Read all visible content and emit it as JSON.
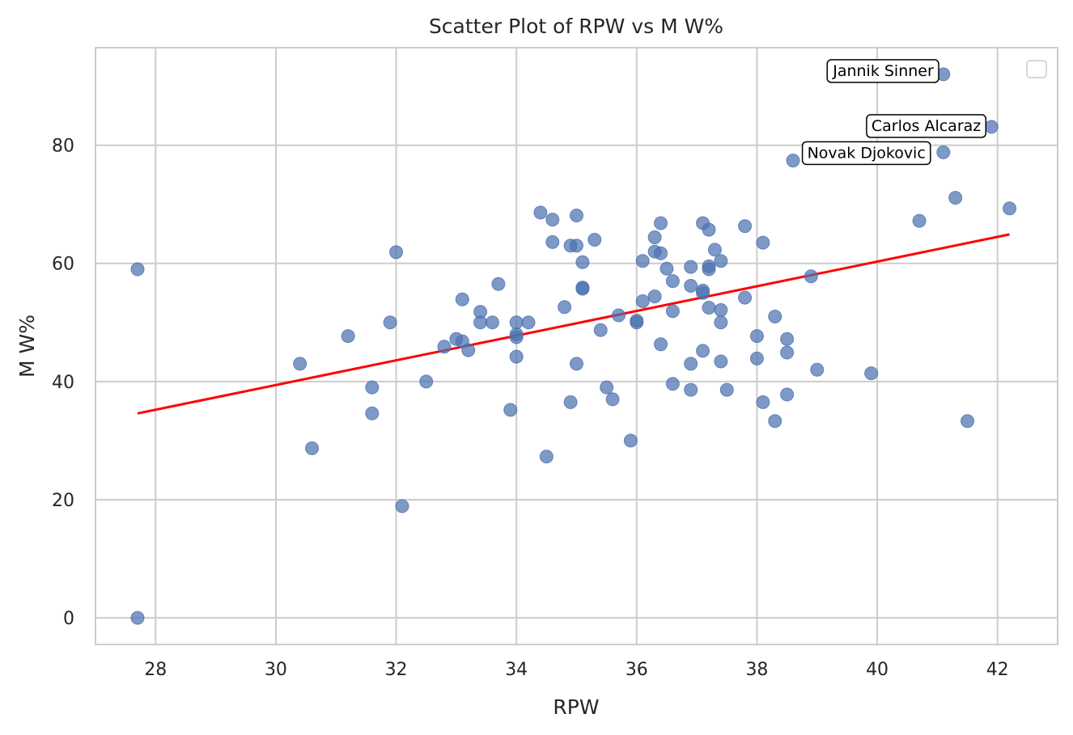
{
  "chart_data": {
    "type": "scatter",
    "title": "Scatter Plot of RPW vs M W%",
    "xlabel": "RPW",
    "ylabel": "M W%",
    "xlim": [
      27,
      43
    ],
    "ylim": [
      -4.5,
      96.5
    ],
    "xticks": [
      28,
      30,
      32,
      34,
      36,
      38,
      40,
      42
    ],
    "yticks": [
      0,
      20,
      40,
      60,
      80
    ],
    "grid": true,
    "legend": "top-right, empty",
    "colors": {
      "points": "#4c72b0",
      "trend": "#ff0000",
      "grid": "#cccccc",
      "frame": "#cccccc"
    },
    "points": [
      {
        "x": 27.7,
        "y": 59.0
      },
      {
        "x": 27.7,
        "y": 0.0
      },
      {
        "x": 30.4,
        "y": 43.0
      },
      {
        "x": 30.6,
        "y": 28.7
      },
      {
        "x": 31.2,
        "y": 47.7
      },
      {
        "x": 31.6,
        "y": 39.0
      },
      {
        "x": 31.6,
        "y": 34.6
      },
      {
        "x": 31.9,
        "y": 50.0
      },
      {
        "x": 32.0,
        "y": 61.9
      },
      {
        "x": 32.1,
        "y": 18.9
      },
      {
        "x": 32.5,
        "y": 40.0
      },
      {
        "x": 32.8,
        "y": 45.9
      },
      {
        "x": 33.0,
        "y": 47.2
      },
      {
        "x": 33.1,
        "y": 46.8
      },
      {
        "x": 33.1,
        "y": 53.9
      },
      {
        "x": 33.2,
        "y": 45.3
      },
      {
        "x": 33.4,
        "y": 51.8
      },
      {
        "x": 33.4,
        "y": 50.0
      },
      {
        "x": 33.6,
        "y": 50.0
      },
      {
        "x": 33.7,
        "y": 56.5
      },
      {
        "x": 33.9,
        "y": 35.2
      },
      {
        "x": 34.0,
        "y": 50.0
      },
      {
        "x": 34.0,
        "y": 48.0
      },
      {
        "x": 34.0,
        "y": 47.5
      },
      {
        "x": 34.0,
        "y": 44.2
      },
      {
        "x": 34.2,
        "y": 50.0
      },
      {
        "x": 34.4,
        "y": 68.6
      },
      {
        "x": 34.5,
        "y": 27.3
      },
      {
        "x": 34.6,
        "y": 67.4
      },
      {
        "x": 34.6,
        "y": 63.6
      },
      {
        "x": 34.8,
        "y": 52.6
      },
      {
        "x": 34.9,
        "y": 63.0
      },
      {
        "x": 34.9,
        "y": 36.5
      },
      {
        "x": 35.0,
        "y": 68.1
      },
      {
        "x": 35.0,
        "y": 63.0
      },
      {
        "x": 35.0,
        "y": 43.0
      },
      {
        "x": 35.1,
        "y": 60.2
      },
      {
        "x": 35.1,
        "y": 55.9
      },
      {
        "x": 35.1,
        "y": 55.7
      },
      {
        "x": 35.3,
        "y": 64.0
      },
      {
        "x": 35.4,
        "y": 48.7
      },
      {
        "x": 35.5,
        "y": 39.0
      },
      {
        "x": 35.6,
        "y": 37.0
      },
      {
        "x": 35.7,
        "y": 51.2
      },
      {
        "x": 35.9,
        "y": 30.0
      },
      {
        "x": 36.0,
        "y": 50.0
      },
      {
        "x": 36.0,
        "y": 50.3
      },
      {
        "x": 36.1,
        "y": 60.4
      },
      {
        "x": 36.1,
        "y": 53.6
      },
      {
        "x": 36.3,
        "y": 64.4
      },
      {
        "x": 36.3,
        "y": 62.0
      },
      {
        "x": 36.3,
        "y": 54.4
      },
      {
        "x": 36.4,
        "y": 66.8
      },
      {
        "x": 36.4,
        "y": 61.7
      },
      {
        "x": 36.4,
        "y": 46.3
      },
      {
        "x": 36.5,
        "y": 59.1
      },
      {
        "x": 36.6,
        "y": 57.0
      },
      {
        "x": 36.6,
        "y": 51.9
      },
      {
        "x": 36.6,
        "y": 39.6
      },
      {
        "x": 36.9,
        "y": 59.4
      },
      {
        "x": 36.9,
        "y": 56.2
      },
      {
        "x": 36.9,
        "y": 43.0
      },
      {
        "x": 36.9,
        "y": 38.6
      },
      {
        "x": 37.1,
        "y": 66.8
      },
      {
        "x": 37.1,
        "y": 55.4
      },
      {
        "x": 37.1,
        "y": 55.0
      },
      {
        "x": 37.1,
        "y": 45.2
      },
      {
        "x": 37.2,
        "y": 65.7
      },
      {
        "x": 37.2,
        "y": 59.5
      },
      {
        "x": 37.2,
        "y": 59.0
      },
      {
        "x": 37.2,
        "y": 52.5
      },
      {
        "x": 37.3,
        "y": 62.3
      },
      {
        "x": 37.4,
        "y": 60.4
      },
      {
        "x": 37.4,
        "y": 52.1
      },
      {
        "x": 37.4,
        "y": 50.0
      },
      {
        "x": 37.4,
        "y": 43.4
      },
      {
        "x": 37.5,
        "y": 38.6
      },
      {
        "x": 37.8,
        "y": 66.3
      },
      {
        "x": 37.8,
        "y": 54.2
      },
      {
        "x": 38.0,
        "y": 47.7
      },
      {
        "x": 38.0,
        "y": 43.9
      },
      {
        "x": 38.1,
        "y": 63.5
      },
      {
        "x": 38.1,
        "y": 36.5
      },
      {
        "x": 38.3,
        "y": 51.0
      },
      {
        "x": 38.3,
        "y": 33.3
      },
      {
        "x": 38.5,
        "y": 47.2
      },
      {
        "x": 38.5,
        "y": 44.9
      },
      {
        "x": 38.5,
        "y": 37.8
      },
      {
        "x": 38.6,
        "y": 77.4
      },
      {
        "x": 38.9,
        "y": 57.8
      },
      {
        "x": 39.0,
        "y": 42.0
      },
      {
        "x": 39.9,
        "y": 41.4
      },
      {
        "x": 40.7,
        "y": 67.2
      },
      {
        "x": 41.1,
        "y": 92.0
      },
      {
        "x": 41.1,
        "y": 78.8
      },
      {
        "x": 41.3,
        "y": 71.1
      },
      {
        "x": 41.5,
        "y": 33.3
      },
      {
        "x": 41.9,
        "y": 83.1
      },
      {
        "x": 42.2,
        "y": 69.3
      }
    ],
    "trendline": {
      "x": [
        27.7,
        42.2
      ],
      "y": [
        34.6,
        64.9
      ]
    },
    "annotations": [
      {
        "text": "Jannik Sinner",
        "x": 41.1,
        "y": 92.0
      },
      {
        "text": "Carlos Alcaraz",
        "x": 41.9,
        "y": 83.1
      },
      {
        "text": "Novak Djokovic",
        "x": 41.1,
        "y": 78.8
      }
    ]
  }
}
